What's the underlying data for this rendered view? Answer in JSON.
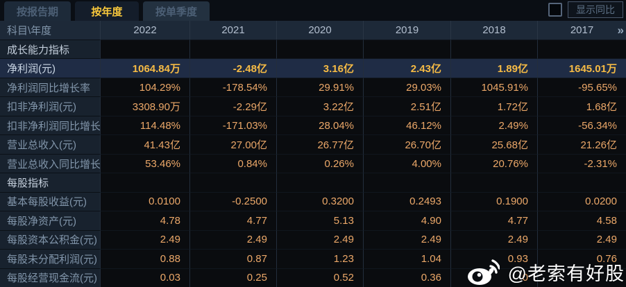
{
  "tabs": [
    {
      "label": "按报告期",
      "active": false
    },
    {
      "label": "按年度",
      "active": true
    },
    {
      "label": "按单季度",
      "active": false
    }
  ],
  "toolbar": {
    "show_yoy_label": "显示同比",
    "checkbox_checked": false
  },
  "table": {
    "corner_label": "科目\\年度",
    "years": [
      "2022",
      "2021",
      "2020",
      "2019",
      "2018",
      "2017"
    ],
    "more_years_icon": "»",
    "rows": [
      {
        "type": "section",
        "label": "成长能力指标",
        "values": [
          "",
          "",
          "",
          "",
          "",
          ""
        ]
      },
      {
        "type": "data",
        "highlight": true,
        "label": "净利润(元)",
        "values": [
          "1064.84万",
          "-2.48亿",
          "3.16亿",
          "2.43亿",
          "1.89亿",
          "1645.01万"
        ]
      },
      {
        "type": "data",
        "label": "净利润同比增长率",
        "values": [
          "104.29%",
          "-178.54%",
          "29.91%",
          "29.03%",
          "1045.91%",
          "-95.65%"
        ]
      },
      {
        "type": "data",
        "label": "扣非净利润(元)",
        "values": [
          "3308.90万",
          "-2.29亿",
          "3.22亿",
          "2.51亿",
          "1.72亿",
          "1.68亿"
        ]
      },
      {
        "type": "data",
        "label": "扣非净利润同比增长率",
        "values": [
          "114.48%",
          "-171.03%",
          "28.04%",
          "46.12%",
          "2.49%",
          "-56.34%"
        ]
      },
      {
        "type": "data",
        "label": "营业总收入(元)",
        "values": [
          "41.43亿",
          "27.00亿",
          "26.77亿",
          "26.70亿",
          "25.68亿",
          "21.26亿"
        ]
      },
      {
        "type": "data",
        "label": "营业总收入同比增长率",
        "values": [
          "53.46%",
          "0.84%",
          "0.26%",
          "4.00%",
          "20.76%",
          "-2.31%"
        ]
      },
      {
        "type": "section",
        "label": "每股指标",
        "values": [
          "",
          "",
          "",
          "",
          "",
          ""
        ]
      },
      {
        "type": "data",
        "label": "基本每股收益(元)",
        "values": [
          "0.0100",
          "-0.2500",
          "0.3200",
          "0.2493",
          "0.1900",
          "0.0200"
        ]
      },
      {
        "type": "data",
        "label": "每股净资产(元)",
        "values": [
          "4.78",
          "4.77",
          "5.13",
          "4.90",
          "4.77",
          "4.58"
        ]
      },
      {
        "type": "data",
        "label": "每股资本公积金(元)",
        "values": [
          "2.49",
          "2.49",
          "2.49",
          "2.49",
          "2.49",
          "2.49"
        ]
      },
      {
        "type": "data",
        "label": "每股未分配利润(元)",
        "values": [
          "0.88",
          "0.87",
          "1.23",
          "1.04",
          "0.93",
          "0.76"
        ]
      },
      {
        "type": "data",
        "label": "每股经营现金流(元)",
        "values": [
          "0.03",
          "0.25",
          "0.52",
          "0.36",
          "0",
          ""
        ]
      }
    ]
  },
  "watermark": {
    "icon": "weibo-logo",
    "text": "@老索有好股"
  },
  "colors": {
    "active_tab_text": "#f8c83c",
    "value_text": "#eca869",
    "highlight_value_text": "#f6bb45",
    "highlight_row_bg": "#1f2c45",
    "header_row_bg": "#1d2938",
    "label_col_bg": "#18222e",
    "value_cell_bg": "#0a0c0f"
  }
}
